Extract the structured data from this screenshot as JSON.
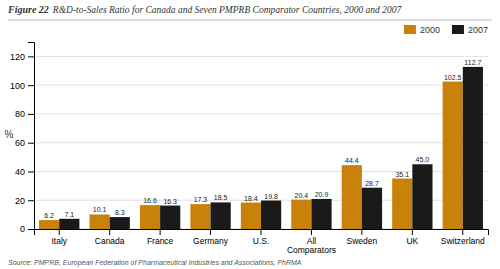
{
  "chart_data": {
    "type": "bar",
    "title": "Figure 22",
    "subtitle": "R&D-to-Sales Ratio for Canada and Seven PMPRB Comparator Countries, 2000 and 2007",
    "annotations": [
      "Source: PMPRB, European Federation of Pharmaceutical Industries and Associations, PhRMA"
    ],
    "categories": [
      "Italy",
      "Canada",
      "France",
      "Germany",
      "U.S.",
      "All Comparators",
      "Sweden",
      "UK",
      "Switzerland"
    ],
    "series": [
      {
        "name": "2000",
        "color": "#C8820A",
        "values": [
          6.2,
          10.1,
          16.6,
          17.3,
          18.4,
          20.4,
          44.4,
          35.1,
          102.5
        ],
        "value_labels": [
          "6.2",
          "10.1",
          "16.6",
          "17.3",
          "18.4",
          "20.4",
          "44.4",
          "35.1",
          "102.5"
        ]
      },
      {
        "name": "2007",
        "color": "#1a1a1a",
        "values": [
          7.1,
          8.3,
          16.3,
          18.5,
          19.8,
          20.9,
          28.7,
          45.0,
          112.7
        ],
        "value_labels": [
          "7.1",
          "8.3",
          "16.3",
          "18.5",
          "19.8",
          "20.9",
          "28.7",
          "45.0",
          "112.7"
        ]
      }
    ],
    "y_label": "%",
    "ylim": [
      0,
      130
    ],
    "yticks": [
      0,
      20,
      40,
      60,
      80,
      100,
      120
    ],
    "grid": true,
    "legend": "upper right",
    "data_labels": true
  }
}
